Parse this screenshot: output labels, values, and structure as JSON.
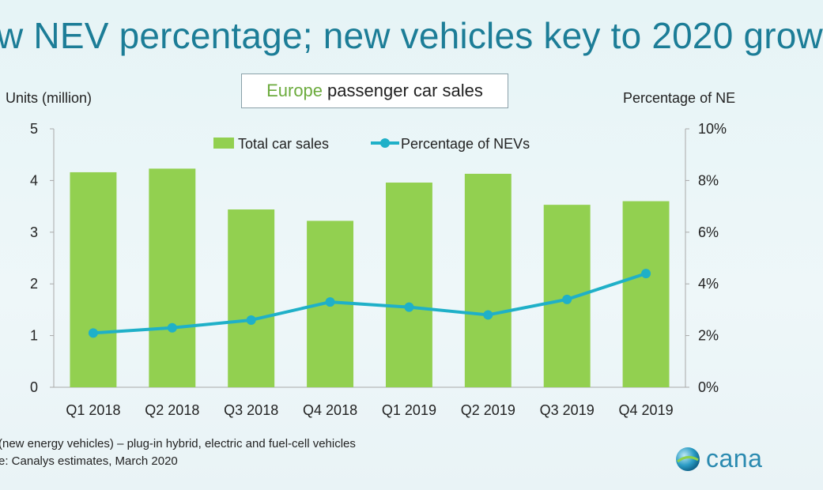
{
  "header": {
    "title": "w NEV percentage; new vehicles key to 2020 grow",
    "subtitle_accent": "Europe",
    "subtitle_rest": "passenger car sales"
  },
  "footer": {
    "note_line1": "(new energy vehicles) – plug-in hybrid, electric and fuel-cell vehicles",
    "note_line2": "e: Canalys estimates, March 2020",
    "logo_text": "cana"
  },
  "colors": {
    "bar": "#92d050",
    "line": "#1fb0c8",
    "accent": "#6cab3d",
    "title": "#1c7d97"
  },
  "chart_data": {
    "type": "bar",
    "title": "Europe passenger car sales",
    "categories": [
      "Q1 2018",
      "Q2 2018",
      "Q3 2018",
      "Q4 2018",
      "Q1 2019",
      "Q2 2019",
      "Q3 2019",
      "Q4 2019"
    ],
    "series": [
      {
        "name": "Total car sales",
        "type": "bar",
        "axis": "left",
        "values": [
          4.16,
          4.23,
          3.44,
          3.22,
          3.96,
          4.13,
          3.53,
          3.6
        ]
      },
      {
        "name": "Percentage of NEVs",
        "type": "line",
        "axis": "right",
        "values": [
          2.1,
          2.3,
          2.6,
          3.3,
          3.1,
          2.8,
          3.4,
          4.4
        ]
      }
    ],
    "ylabel_left": "Units (million)",
    "ylabel_right": "Percentage of NE",
    "ylim_left": [
      0,
      5
    ],
    "yticks_left": [
      "0",
      "1",
      "2",
      "3",
      "4",
      "5"
    ],
    "ylim_right": [
      0,
      10
    ],
    "yticks_right": [
      "0%",
      "2%",
      "4%",
      "6%",
      "8%",
      "10%"
    ],
    "legend_position": "top-center",
    "grid": false
  }
}
